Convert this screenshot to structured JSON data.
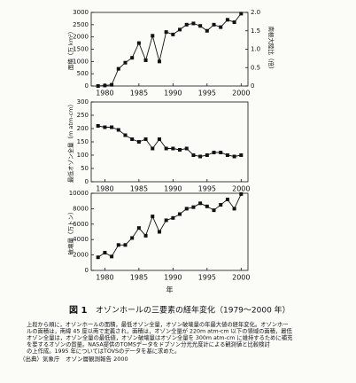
{
  "chart_data": [
    {
      "type": "line",
      "ylabel": "面積（万 km²）",
      "y2label": "南極大陸比（倍）",
      "x": [
        1979,
        1980,
        1981,
        1982,
        1983,
        1984,
        1985,
        1986,
        1987,
        1988,
        1989,
        1990,
        1991,
        1992,
        1993,
        1994,
        1995,
        1996,
        1997,
        1998,
        1999,
        2000
      ],
      "series": [
        {
          "color": "#111111",
          "values": [
            0,
            20,
            50,
            700,
            950,
            1150,
            1750,
            1050,
            2050,
            1000,
            2200,
            2100,
            2300,
            2500,
            2550,
            2450,
            2250,
            2500,
            2400,
            2700,
            2600,
            2950
          ]
        }
      ],
      "xlim": [
        1978,
        2001
      ],
      "xticks": [
        1980,
        1985,
        1990,
        1995,
        2000
      ],
      "ylim": [
        0,
        3000
      ],
      "yticks": [
        0,
        500,
        1000,
        1500,
        2000,
        2500,
        3000
      ],
      "y2lim": [
        0,
        2
      ],
      "y2ticks": [
        0,
        0.5,
        {
          "value": 1,
          "label": "1.0"
        },
        1.5,
        {
          "value": 2,
          "label": "2.0"
        }
      ]
    },
    {
      "type": "line",
      "ylabel": "最低オゾン全量（m atm-cm）",
      "x": [
        1979,
        1980,
        1981,
        1982,
        1983,
        1984,
        1985,
        1986,
        1987,
        1988,
        1989,
        1990,
        1991,
        1992,
        1993,
        1994,
        1995,
        1996,
        1997,
        1998,
        1999,
        2000
      ],
      "series": [
        {
          "color": "#111111",
          "values": [
            210,
            205,
            205,
            195,
            175,
            160,
            150,
            160,
            125,
            160,
            125,
            125,
            120,
            125,
            100,
            95,
            100,
            110,
            110,
            100,
            95,
            100
          ]
        }
      ],
      "xlim": [
        1978,
        2001
      ],
      "xticks": [
        1980,
        1985,
        1990,
        1995,
        2000
      ],
      "ylim": [
        0,
        300
      ],
      "yticks": [
        0,
        50,
        100,
        150,
        200,
        250,
        300
      ]
    },
    {
      "type": "line",
      "ylabel": "破壊量（万トン）",
      "xlabel": "年",
      "x": [
        1979,
        1980,
        1981,
        1982,
        1983,
        1984,
        1985,
        1986,
        1987,
        1988,
        1989,
        1990,
        1991,
        1992,
        1993,
        1994,
        1995,
        1996,
        1997,
        1998,
        1999,
        2000
      ],
      "series": [
        {
          "color": "#111111",
          "values": [
            1700,
            2300,
            1800,
            3300,
            3300,
            4200,
            5500,
            4500,
            7000,
            5000,
            6500,
            6800,
            7300,
            8000,
            8200,
            8700,
            8300,
            7800,
            8500,
            9200,
            8000,
            9900
          ]
        }
      ],
      "xlim": [
        1978,
        2001
      ],
      "xticks": [
        1980,
        1985,
        1990,
        1995,
        2000
      ],
      "ylim": [
        0,
        10000
      ],
      "yticks": [
        0,
        2000,
        4000,
        6000,
        8000,
        10000
      ]
    }
  ],
  "caption": {
    "label": "図 1",
    "title": "オゾンホールの三要素の経年変化（1979〜2000 年）",
    "lines": [
      "上段から順に，オゾンホールの面積，最低オゾン全量，オゾン破壊量の年最大値の経年変化。オゾンホー",
      "ルの面積は，南緯 45 度以南で定義され，面積は，オゾン全量が 220m atm-cm 以下の領域の面積，最低",
      "オゾン全量は，オゾン全量の最低値，オゾン破壊量はオゾン全量を 300m atm-cm に維持するために補充",
      "を要するオゾンの質量。NASA提供のTOMSデータをドブソン分光光度計による観測値と比較検討",
      "の上作成。1995 年についてはTOVSのデータを基に求めた。"
    ],
    "source": "（出典）気象庁　オゾン層観測報告 2000"
  }
}
